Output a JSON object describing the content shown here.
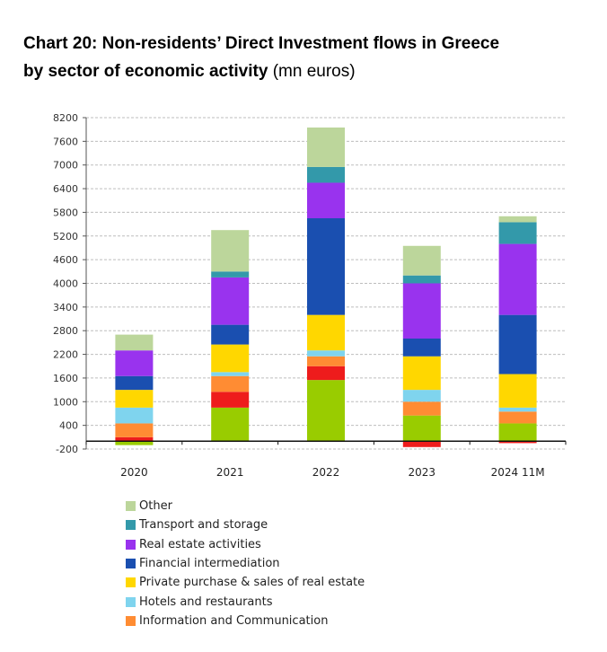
{
  "header": {
    "title_bold_1": "Chart 20: Non-residents’ Direct Investment flows in Greece",
    "title_bold_2": "by sector of economic activity",
    "title_unit": "(mn euros)"
  },
  "chart_data": {
    "type": "bar",
    "stacked": true,
    "title": "Chart 20: Non-residents’ Direct Investment flows in Greece by sector of economic activity (mn euros)",
    "categories": [
      "2020",
      "2021",
      "2022",
      "2023",
      "2024 11M"
    ],
    "ylim": [
      -200,
      8200
    ],
    "yticks": [
      -200,
      400,
      1000,
      1600,
      2200,
      2800,
      3400,
      4000,
      4600,
      5200,
      5800,
      6400,
      7000,
      7600,
      8200
    ],
    "ytick_labels": [
      "-200",
      "400",
      "1000",
      "1600",
      "2200",
      "2800",
      "3400",
      "4000",
      "4600",
      "5200",
      "5800",
      "6400",
      "7000",
      "7600",
      "8200"
    ],
    "grid": true,
    "legend_position": "bottom",
    "series": [
      {
        "key": "manufacturing",
        "color": "#99cc00",
        "values": [
          -100,
          850,
          1550,
          650,
          450
        ]
      },
      {
        "key": "trade",
        "color": "#ee1c1c",
        "values": [
          100,
          400,
          350,
          -150,
          -50
        ]
      },
      {
        "key": "ict",
        "name": "Information and Communication",
        "color": "#ff8c33",
        "values": [
          350,
          400,
          250,
          350,
          300
        ]
      },
      {
        "key": "hotels",
        "name": "Hotels and restaurants",
        "color": "#7fd4ee",
        "values": [
          400,
          100,
          150,
          300,
          100
        ]
      },
      {
        "key": "private_re",
        "name": "Private purchase & sales of real estate",
        "color": "#ffd700",
        "values": [
          450,
          700,
          900,
          850,
          850
        ]
      },
      {
        "key": "financial",
        "name": "Financial intermediation",
        "color": "#1a4fb0",
        "values": [
          350,
          500,
          2450,
          450,
          1500
        ]
      },
      {
        "key": "real_estate",
        "name": "Real estate activities",
        "color": "#9933ee",
        "values": [
          650,
          1200,
          900,
          1400,
          1800
        ]
      },
      {
        "key": "transport",
        "name": "Transport and storage",
        "color": "#3399aa",
        "values": [
          0,
          150,
          400,
          200,
          550
        ]
      },
      {
        "key": "other",
        "name": "Other",
        "color": "#bcd69b",
        "values": [
          400,
          1050,
          1000,
          750,
          150
        ]
      }
    ],
    "legend_order": [
      "other",
      "transport",
      "real_estate",
      "financial",
      "private_re",
      "hotels",
      "ict"
    ]
  }
}
